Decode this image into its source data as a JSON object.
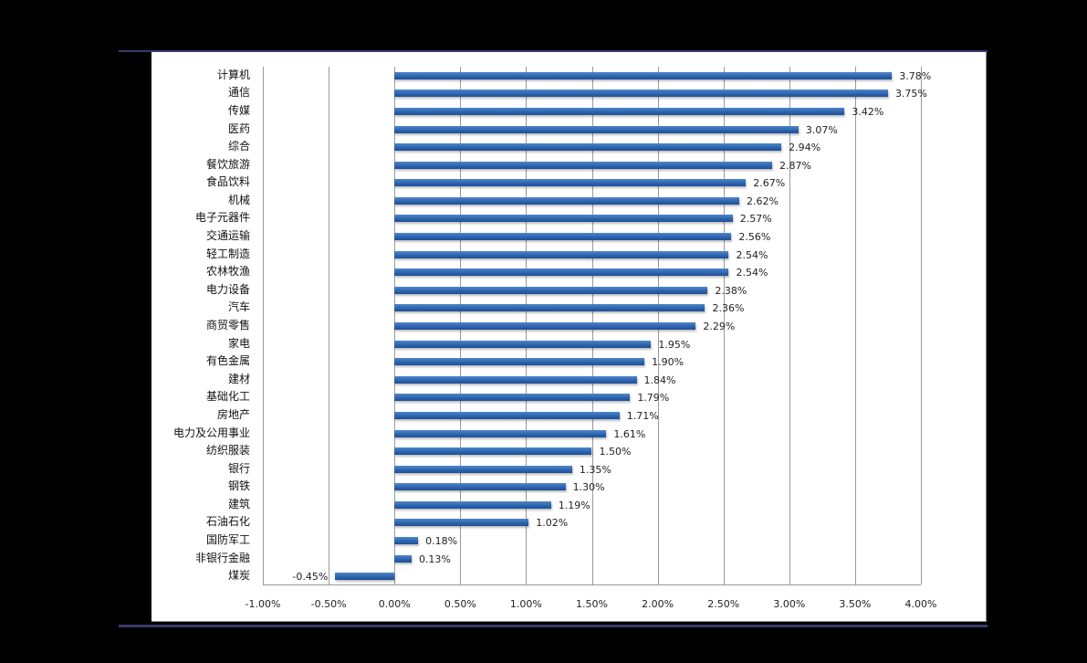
{
  "chart_data": {
    "type": "bar",
    "orientation": "horizontal",
    "title": "",
    "xlabel": "",
    "ylabel": "",
    "xlim": [
      -1.0,
      4.0
    ],
    "x_ticks": [
      "-1.00%",
      "-0.50%",
      "0.00%",
      "0.50%",
      "1.00%",
      "1.50%",
      "2.00%",
      "2.50%",
      "3.00%",
      "3.50%",
      "4.00%"
    ],
    "grid": "vertical",
    "legend": "none",
    "bar_color": "#2d65b0",
    "categories": [
      "计算机",
      "通信",
      "传媒",
      "医药",
      "综合",
      "餐饮旅游",
      "食品饮料",
      "机械",
      "电子元器件",
      "交通运输",
      "轻工制造",
      "农林牧渔",
      "电力设备",
      "汽车",
      "商贸零售",
      "家电",
      "有色金属",
      "建材",
      "基础化工",
      "房地产",
      "电力及公用事业",
      "纺织服装",
      "银行",
      "钢铁",
      "建筑",
      "石油石化",
      "国防军工",
      "非银行金融",
      "煤炭"
    ],
    "values": [
      3.78,
      3.75,
      3.42,
      3.07,
      2.94,
      2.87,
      2.67,
      2.62,
      2.57,
      2.56,
      2.54,
      2.54,
      2.38,
      2.36,
      2.29,
      1.95,
      1.9,
      1.84,
      1.79,
      1.71,
      1.61,
      1.5,
      1.35,
      1.3,
      1.19,
      1.02,
      0.18,
      0.13,
      -0.45
    ],
    "labels": [
      "3.78%",
      "3.75%",
      "3.42%",
      "3.07%",
      "2.94%",
      "2.87%",
      "2.67%",
      "2.62%",
      "2.57%",
      "2.56%",
      "2.54%",
      "2.54%",
      "2.38%",
      "2.36%",
      "2.29%",
      "1.95%",
      "1.90%",
      "1.84%",
      "1.79%",
      "1.71%",
      "1.61%",
      "1.50%",
      "1.35%",
      "1.30%",
      "1.19%",
      "1.02%",
      "0.18%",
      "0.13%",
      "-0.45%"
    ]
  },
  "colors": {
    "background": "#000000",
    "panel": "#ffffff",
    "rule": "#3a3a6a",
    "bar": "#2d65b0",
    "grid": "#9a9a9a"
  }
}
